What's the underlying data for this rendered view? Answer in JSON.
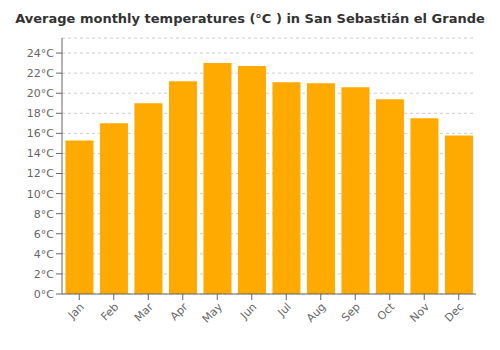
{
  "chart_data": {
    "type": "bar",
    "title": "Average monthly temperatures (°C ) in San Sebastián el Grande",
    "categories": [
      "Jan",
      "Feb",
      "Mar",
      "Apr",
      "May",
      "Jun",
      "Jul",
      "Aug",
      "Sep",
      "Oct",
      "Nov",
      "Dec"
    ],
    "values": [
      15.3,
      17.0,
      19.0,
      21.2,
      23.0,
      22.7,
      21.1,
      21.0,
      20.6,
      19.4,
      17.5,
      15.8
    ],
    "color": "#FFAA00",
    "ylim": [
      0,
      25.5
    ],
    "yticks": [
      {
        "value": 0,
        "label": "0°C"
      },
      {
        "value": 2,
        "label": "2°C"
      },
      {
        "value": 4,
        "label": "4°C"
      },
      {
        "value": 6,
        "label": "6°C"
      },
      {
        "value": 8,
        "label": "8°C"
      },
      {
        "value": 10,
        "label": "10°C"
      },
      {
        "value": 12,
        "label": "12°C"
      },
      {
        "value": 14,
        "label": "14°C"
      },
      {
        "value": 16,
        "label": "16°C"
      },
      {
        "value": 18,
        "label": "18°C"
      },
      {
        "value": 20,
        "label": "20°C"
      },
      {
        "value": 22,
        "label": "22°C"
      },
      {
        "value": 24,
        "label": "24°C"
      }
    ],
    "grid": true
  }
}
